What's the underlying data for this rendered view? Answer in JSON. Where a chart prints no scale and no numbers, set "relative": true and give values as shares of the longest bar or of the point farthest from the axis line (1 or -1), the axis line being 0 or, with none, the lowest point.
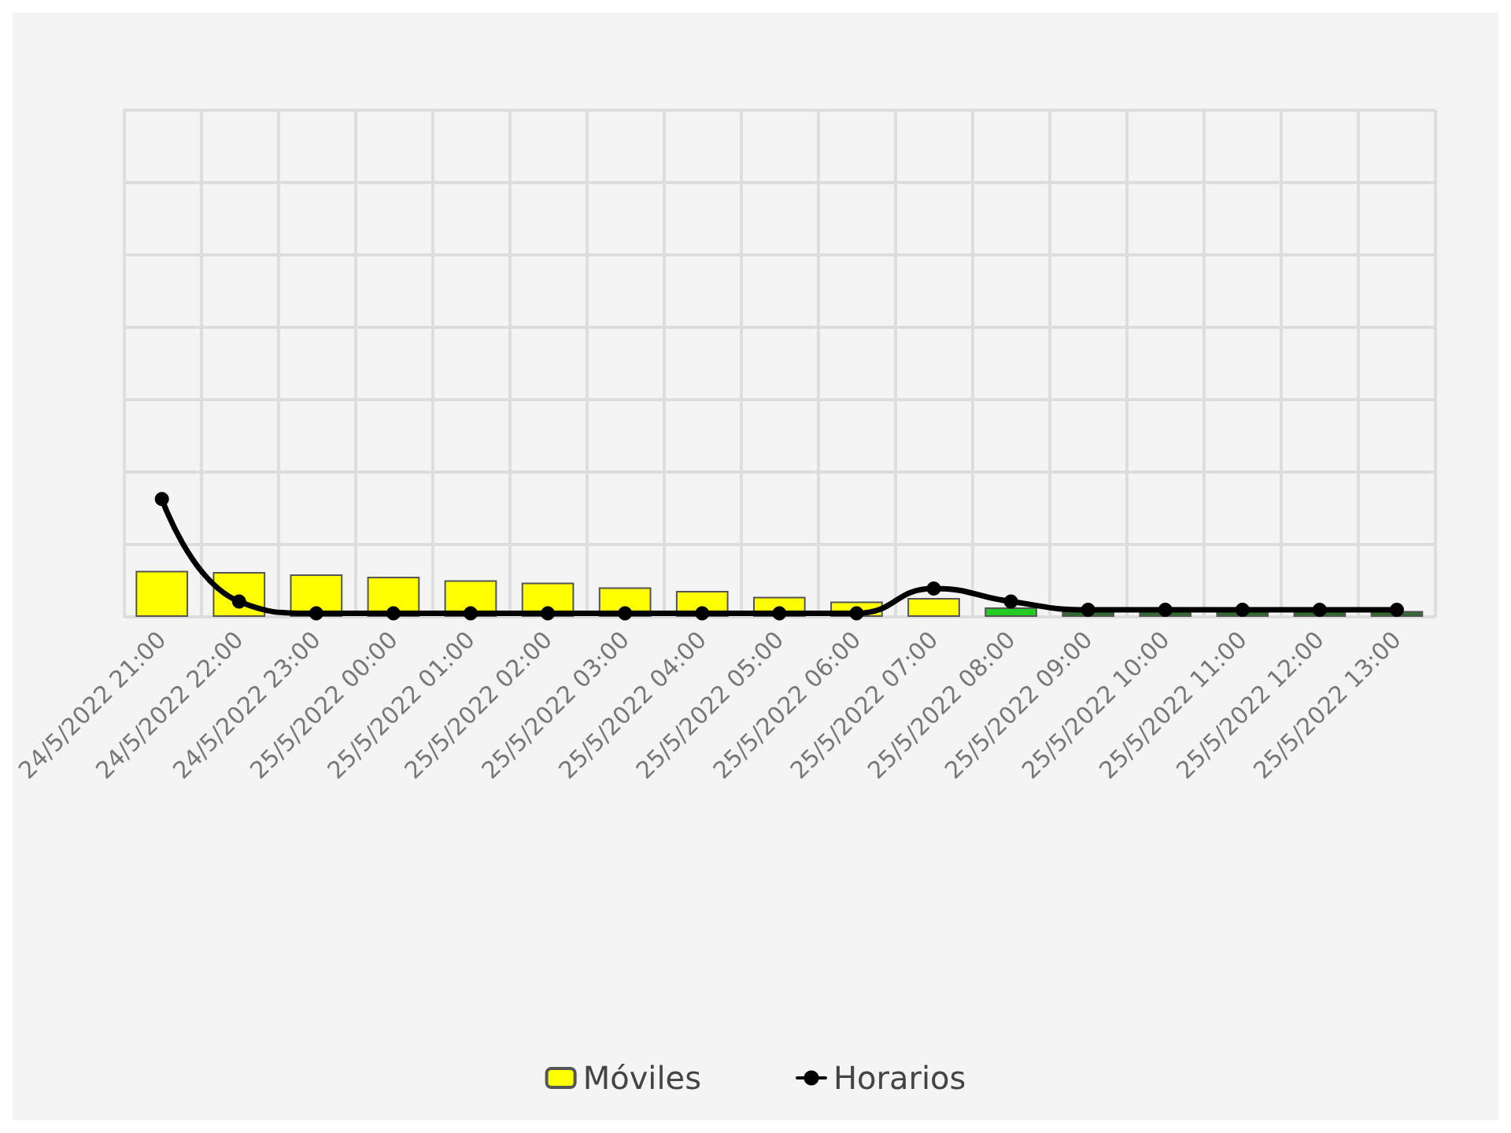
{
  "chart_data": {
    "type": "bar",
    "relative": true,
    "grid": true,
    "legend": "bottom",
    "categories": [
      "24/5/2022 21:00",
      "24/5/2022 22:00",
      "24/5/2022 23:00",
      "25/5/2022 00:00",
      "25/5/2022 01:00",
      "25/5/2022 02:00",
      "25/5/2022 03:00",
      "25/5/2022 04:00",
      "25/5/2022 05:00",
      "25/5/2022 06:00",
      "25/5/2022 07:00",
      "25/5/2022 08:00",
      "25/5/2022 09:00",
      "25/5/2022 10:00",
      "25/5/2022 11:00",
      "25/5/2022 12:00",
      "25/5/2022 13:00"
    ],
    "series": [
      {
        "name": "Móviles",
        "color": "#ffff00",
        "colors": [
          "#ffff00",
          "#ffff00",
          "#ffff00",
          "#ffff00",
          "#ffff00",
          "#ffff00",
          "#ffff00",
          "#ffff00",
          "#ffff00",
          "#ffff00",
          "#ffff00",
          "#22cc22",
          "#2e6b2e",
          "#2e6b2e",
          "#2e6b2e",
          "#2e6b2e",
          "#2e6b2e"
        ],
        "values": [
          0.39,
          0.38,
          0.36,
          0.34,
          0.31,
          0.29,
          0.25,
          0.22,
          0.17,
          0.13,
          0.16,
          0.08,
          0.05,
          0.05,
          0.05,
          0.05,
          0.05
        ]
      },
      {
        "name": "Horarios",
        "type": "line",
        "color": "#000000",
        "marker": "circle",
        "line_style": "solid",
        "values": [
          1,
          0.13,
          0.03,
          0.03,
          0.03,
          0.03,
          0.03,
          0.03,
          0.03,
          0.03,
          0.24,
          0.13,
          0.06,
          0.06,
          0.06,
          0.06,
          0.06
        ]
      }
    ]
  }
}
